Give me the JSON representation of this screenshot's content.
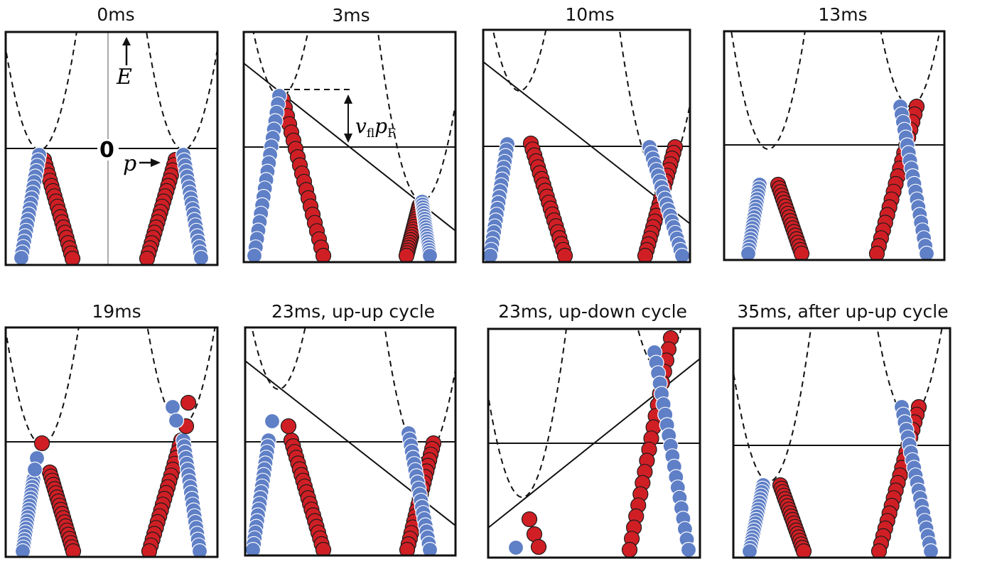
{
  "panels": [
    {
      "title": "0ms"
    },
    {
      "title": "3ms"
    },
    {
      "title": "10ms"
    },
    {
      "title": "13ms"
    },
    {
      "title": "19ms"
    },
    {
      "title": "23ms, up-up cycle"
    },
    {
      "title": "23ms, up-down cycle"
    },
    {
      "title": "35ms, after up-up cycle"
    }
  ],
  "annotations": {
    "energy_axis": "E",
    "momentum_axis": "p",
    "zero_label": "0",
    "offset_label": "v",
    "offset_sub1": "fl",
    "offset_p": "p",
    "offset_sub2": "F"
  },
  "colors": {
    "spin_up": "#cf1f25",
    "spin_down": "#5f7fc6",
    "outline": "#1b1b1b"
  }
}
